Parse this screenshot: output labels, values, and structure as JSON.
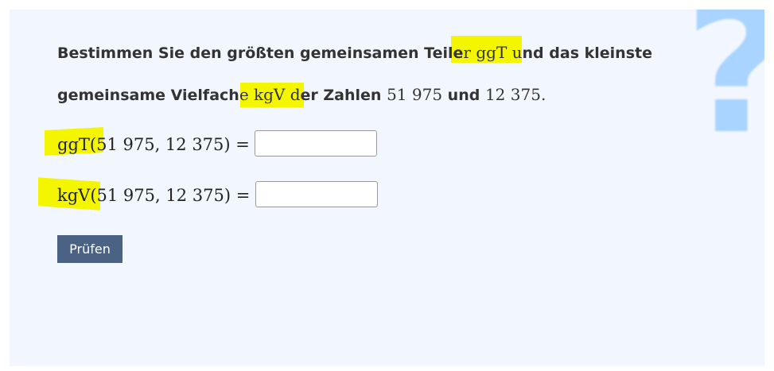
{
  "question": {
    "line1_a": "Bestimmen Sie den größten gemeinsamen Teile",
    "line1_math": "r ggT u",
    "line1_b": "nd das kleinste",
    "line2_a": "gemeinsame Vielfach",
    "line2_math": "e kgV d",
    "line2_b": "er Zahlen ",
    "n1": "51 975",
    "and": " und ",
    "n2": "12 375",
    "dot": "."
  },
  "eq1": {
    "label": "ggT(51 975, 12 375) =",
    "value": ""
  },
  "eq2": {
    "label": "kgV(51 975, 12 375) =",
    "value": ""
  },
  "button": {
    "label": "Prüfen"
  },
  "icon": {
    "name": "question-mark-icon",
    "glyph": "?",
    "color": "#a8d4ff"
  },
  "highlight_color": "#f4f600"
}
